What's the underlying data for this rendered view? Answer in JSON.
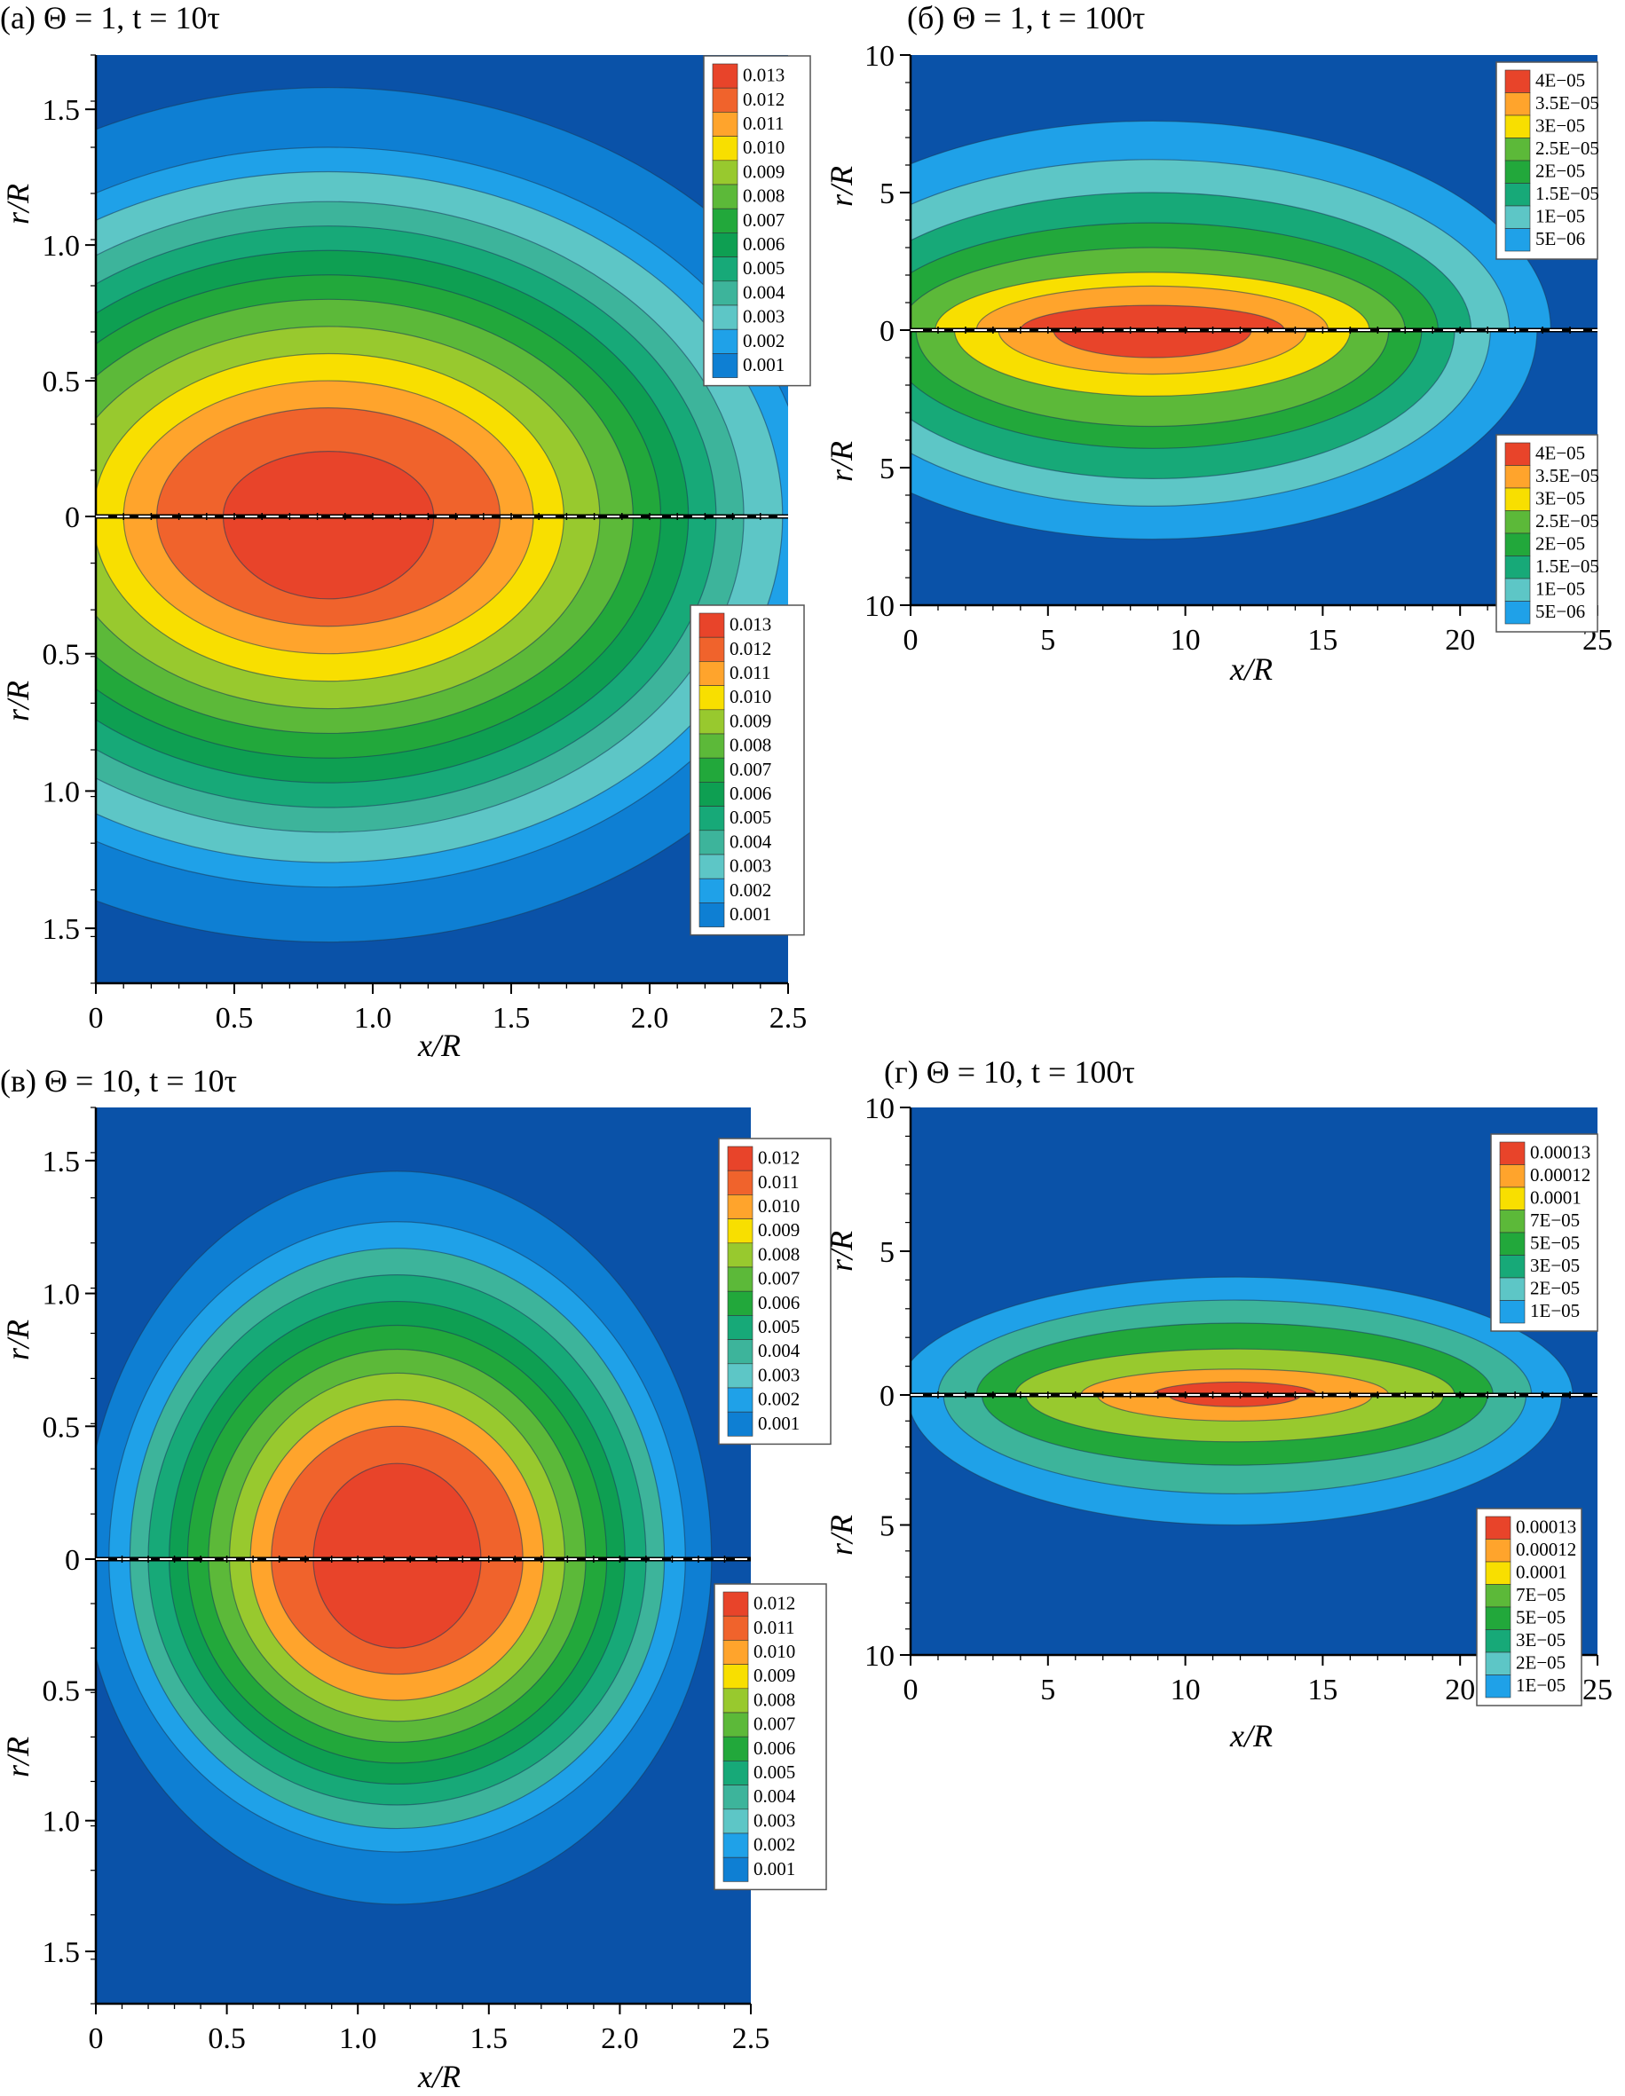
{
  "chart_data": [
    {
      "id": "a",
      "type": "heatmap",
      "title": "(a) Θ = 1, t = 10τ",
      "xlabel": "x/R",
      "ylabel": "r/R",
      "xlim": [
        0,
        2.5
      ],
      "rlim": [
        0,
        1.7
      ],
      "x_ticks": [
        "0",
        "0.5",
        "1.0",
        "1.5",
        "2.0",
        "2.5"
      ],
      "r_ticks": [
        "0",
        "0.5",
        "1.0",
        "1.5"
      ],
      "top_half": {
        "center": [
          0.84,
          0
        ],
        "radii_x": [
          1.95,
          1.74,
          1.64,
          1.5,
          1.4,
          1.3,
          1.2,
          1.1,
          0.98,
          0.85,
          0.74,
          0.62,
          0.38
        ],
        "radii_r": [
          1.58,
          1.36,
          1.27,
          1.16,
          1.07,
          0.98,
          0.89,
          0.8,
          0.7,
          0.6,
          0.5,
          0.4,
          0.24
        ],
        "legend": [
          "0.013",
          "0.012",
          "0.011",
          "0.010",
          "0.009",
          "0.008",
          "0.007",
          "0.006",
          "0.005",
          "0.004",
          "0.003",
          "0.002",
          "0.001"
        ]
      },
      "bottom_half": {
        "center": [
          0.84,
          0
        ],
        "radii_x": [
          1.95,
          1.74,
          1.64,
          1.5,
          1.4,
          1.3,
          1.2,
          1.1,
          0.98,
          0.85,
          0.74,
          0.62,
          0.38
        ],
        "radii_r": [
          1.55,
          1.35,
          1.26,
          1.15,
          1.06,
          0.97,
          0.88,
          0.79,
          0.7,
          0.6,
          0.5,
          0.4,
          0.3
        ],
        "legend": [
          "0.013",
          "0.012",
          "0.011",
          "0.010",
          "0.009",
          "0.008",
          "0.007",
          "0.006",
          "0.005",
          "0.004",
          "0.003",
          "0.002",
          "0.001"
        ]
      }
    },
    {
      "id": "b",
      "type": "heatmap",
      "title": "(б) Θ = 1, t = 100τ",
      "xlabel": "x/R",
      "ylabel": "r/R",
      "xlim": [
        0,
        25
      ],
      "rlim": [
        0,
        10
      ],
      "x_ticks": [
        "0",
        "5",
        "10",
        "15",
        "20",
        "25"
      ],
      "r_ticks": [
        "0",
        "5",
        "10"
      ],
      "top_half": {
        "center": [
          8.8,
          0
        ],
        "radii_x": [
          14.5,
          13.0,
          11.6,
          10.4,
          9.2,
          7.9,
          6.4,
          4.8
        ],
        "radii_r": [
          7.6,
          6.2,
          5.0,
          3.9,
          3.0,
          2.1,
          1.6,
          0.9
        ],
        "legend": [
          "4E−05",
          "3.5E−05",
          "3E−05",
          "2.5E−05",
          "2E−05",
          "1.5E−05",
          "1E−05",
          "5E−06"
        ]
      },
      "bottom_half": {
        "center": [
          8.8,
          0
        ],
        "radii_x": [
          14.0,
          12.3,
          11.0,
          9.8,
          8.6,
          7.2,
          5.6,
          3.6
        ],
        "radii_r": [
          7.6,
          6.4,
          5.4,
          4.3,
          3.5,
          2.4,
          1.6,
          1.0
        ],
        "legend": [
          "4E−05",
          "3.5E−05",
          "3E−05",
          "2.5E−05",
          "2E−05",
          "1.5E−05",
          "1E−05",
          "5E−06"
        ]
      }
    },
    {
      "id": "c",
      "type": "heatmap",
      "title": "(в) Θ = 10, t = 10τ",
      "xlabel": "x/R",
      "ylabel": "r/R",
      "xlim": [
        0,
        2.5
      ],
      "rlim": [
        0,
        1.7
      ],
      "x_ticks": [
        "0",
        "0.5",
        "1.0",
        "1.5",
        "2.0",
        "2.5"
      ],
      "r_ticks": [
        "0",
        "0.5",
        "1.0",
        "1.5"
      ],
      "top_half": {
        "center": [
          1.15,
          0
        ],
        "radii_x": [
          1.2,
          1.1,
          1.02,
          0.95,
          0.87,
          0.8,
          0.72,
          0.64,
          0.56,
          0.48,
          0.32
        ],
        "radii_r": [
          1.46,
          1.27,
          1.17,
          1.07,
          0.97,
          0.88,
          0.79,
          0.7,
          0.6,
          0.5,
          0.36
        ],
        "legend": [
          "0.012",
          "0.011",
          "0.010",
          "0.009",
          "0.008",
          "0.007",
          "0.006",
          "0.005",
          "0.004",
          "0.003",
          "0.002",
          "0.001"
        ]
      },
      "bottom_half": {
        "center": [
          1.15,
          0
        ],
        "radii_x": [
          1.2,
          1.1,
          1.02,
          0.95,
          0.87,
          0.8,
          0.72,
          0.64,
          0.56,
          0.48,
          0.32
        ],
        "radii_r": [
          1.32,
          1.12,
          1.03,
          0.94,
          0.86,
          0.78,
          0.7,
          0.62,
          0.54,
          0.44,
          0.34
        ],
        "legend": [
          "0.012",
          "0.011",
          "0.010",
          "0.009",
          "0.008",
          "0.007",
          "0.006",
          "0.005",
          "0.004",
          "0.003",
          "0.002",
          "0.001"
        ]
      }
    },
    {
      "id": "d",
      "type": "heatmap",
      "title": "(г) Θ = 10, t = 100τ",
      "xlabel": "x/R",
      "ylabel": "r/R",
      "xlim": [
        0,
        25
      ],
      "rlim": [
        0,
        10
      ],
      "x_ticks": [
        "0",
        "5",
        "10",
        "15",
        "20",
        "25"
      ],
      "r_ticks": [
        "0",
        "5",
        "10"
      ],
      "top_half": {
        "center": [
          11.8,
          0
        ],
        "radii_x": [
          12.3,
          10.8,
          9.4,
          8.0,
          5.6,
          3.0
        ],
        "radii_r": [
          4.1,
          3.3,
          2.5,
          1.6,
          0.9,
          0.45
        ],
        "legend": [
          "0.00013",
          "0.00012",
          "0.0001",
          "7E−05",
          "5E−05",
          "3E−05",
          "2E−05",
          "1E−05"
        ]
      },
      "bottom_half": {
        "center": [
          11.8,
          0
        ],
        "radii_x": [
          11.9,
          10.6,
          9.2,
          7.6,
          5.0,
          2.4
        ],
        "radii_r": [
          5.0,
          3.8,
          2.7,
          1.8,
          1.0,
          0.45
        ],
        "legend": [
          "0.00013",
          "0.00012",
          "0.0001",
          "7E−05",
          "5E−05",
          "3E−05",
          "2E−05",
          "1E−05"
        ]
      }
    }
  ],
  "colors": {
    "background": "#0a52a8",
    "lowest_band": "#0a52a8",
    "palette_13": [
      "#075ab8",
      "#0e7fd3",
      "#1fa1e8",
      "#5dc6c6",
      "#3db49b",
      "#17a978",
      "#0e9f52",
      "#22a83b",
      "#5cb939",
      "#98c92e",
      "#f8df00",
      "#ffa42c",
      "#f0632c",
      "#e8442a"
    ]
  }
}
